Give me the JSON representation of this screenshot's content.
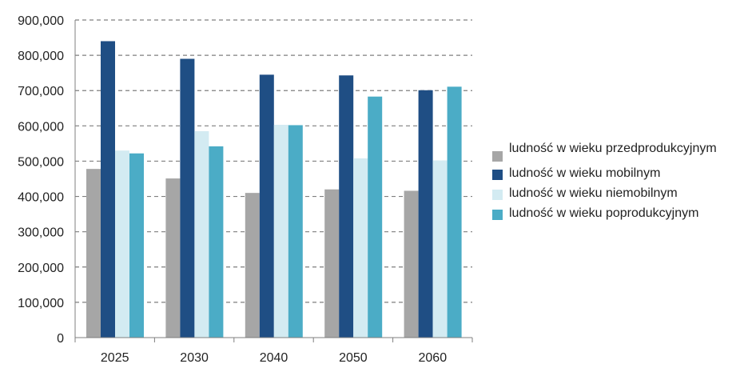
{
  "chart_data": {
    "type": "bar",
    "title": "",
    "xlabel": "",
    "ylabel": "",
    "categories": [
      "2025",
      "2030",
      "2040",
      "2050",
      "2060"
    ],
    "ylim": [
      0,
      900000
    ],
    "y_ticks": [
      "0",
      "100,000",
      "200,000",
      "300,000",
      "400,000",
      "500,000",
      "600,000",
      "700,000",
      "800,000",
      "900,000"
    ],
    "y_tick_values": [
      0,
      100000,
      200000,
      300000,
      400000,
      500000,
      600000,
      700000,
      800000,
      900000
    ],
    "grid": true,
    "legend_position": "right",
    "series": [
      {
        "name": "ludność w wieku przedprodukcyjnym",
        "color": "#a6a6a6",
        "values": [
          478000,
          451000,
          410000,
          420000,
          416000
        ]
      },
      {
        "name": "ludność w wieku mobilnym",
        "color": "#1f4e84",
        "values": [
          840000,
          790000,
          745000,
          743000,
          701000
        ]
      },
      {
        "name": "ludność w wieku niemobilnym",
        "color": "#d3ebf2",
        "values": [
          530000,
          585000,
          603000,
          508000,
          502000
        ]
      },
      {
        "name": "ludność w wieku poprodukcyjnym",
        "color": "#4bacc6",
        "values": [
          522000,
          542000,
          602000,
          683000,
          711000
        ]
      }
    ]
  }
}
